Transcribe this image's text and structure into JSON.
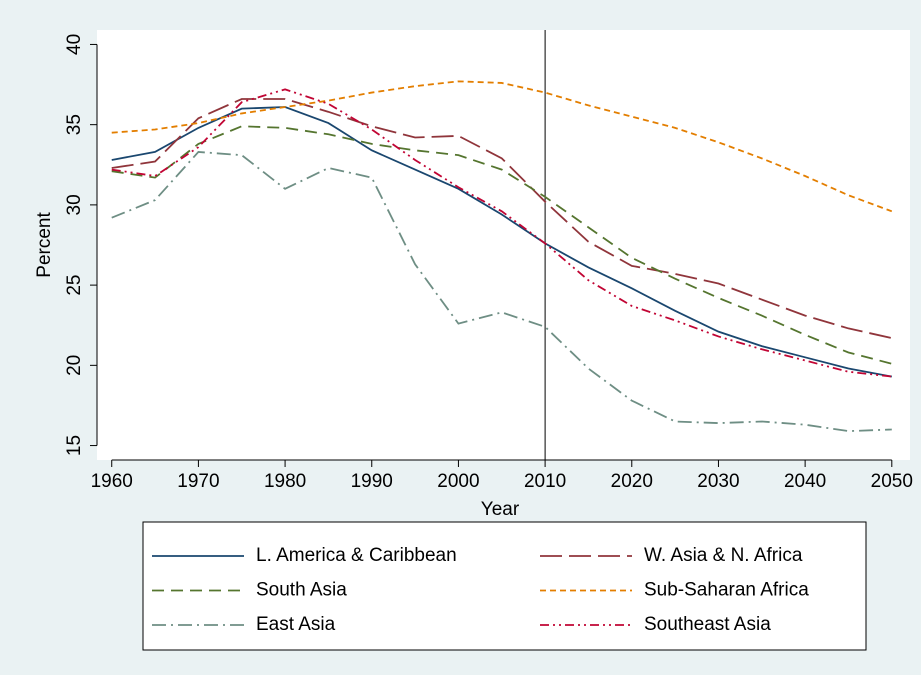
{
  "chart_data": {
    "type": "line",
    "x_label": "Year",
    "y_label": "Percent",
    "x": [
      1960,
      1965,
      1970,
      1975,
      1980,
      1985,
      1990,
      1995,
      2000,
      2005,
      2010,
      2015,
      2020,
      2025,
      2030,
      2035,
      2040,
      2045,
      2050
    ],
    "series": [
      {
        "name": "L. America & Caribbean",
        "color": "#1a476f",
        "dash": "solid",
        "values": [
          32.8,
          33.3,
          34.8,
          36.0,
          36.1,
          35.1,
          33.4,
          32.2,
          31.0,
          29.4,
          27.6,
          26.1,
          24.8,
          23.4,
          22.1,
          21.2,
          20.5,
          19.8,
          19.3
        ]
      },
      {
        "name": "W. Asia & N. Africa",
        "color": "#90353b",
        "dash": "longdash",
        "values": [
          32.3,
          32.7,
          35.4,
          36.6,
          36.6,
          35.8,
          34.9,
          34.2,
          34.3,
          32.9,
          30.2,
          27.7,
          26.2,
          25.7,
          25.1,
          24.1,
          23.1,
          22.3,
          21.7
        ]
      },
      {
        "name": "South Asia",
        "color": "#55752f",
        "dash": "dash",
        "values": [
          32.1,
          31.7,
          33.8,
          34.9,
          34.8,
          34.4,
          33.8,
          33.4,
          33.1,
          32.2,
          30.5,
          28.6,
          26.7,
          25.4,
          24.2,
          23.1,
          21.9,
          20.8,
          20.1
        ]
      },
      {
        "name": "Sub-Saharan Africa",
        "color": "#e37e00",
        "dash": "shortdash",
        "values": [
          34.5,
          34.7,
          35.1,
          35.7,
          36.1,
          36.5,
          37.0,
          37.4,
          37.7,
          37.6,
          37.0,
          36.2,
          35.5,
          34.8,
          33.9,
          32.9,
          31.8,
          30.6,
          29.6
        ]
      },
      {
        "name": "East Asia",
        "color": "#6e8e84",
        "dash": "dashdot",
        "values": [
          29.2,
          30.3,
          33.3,
          33.1,
          31.0,
          32.3,
          31.7,
          26.3,
          22.6,
          23.3,
          22.4,
          19.8,
          17.8,
          16.5,
          16.4,
          16.5,
          16.3,
          15.9,
          16.0
        ]
      },
      {
        "name": "Southeast Asia",
        "color": "#c10534",
        "dash": "dashdotdot",
        "values": [
          32.2,
          31.8,
          33.6,
          36.4,
          37.2,
          36.3,
          34.7,
          32.8,
          31.1,
          29.6,
          27.6,
          25.3,
          23.7,
          22.8,
          21.8,
          21.0,
          20.3,
          19.6,
          19.3
        ]
      }
    ],
    "xlim": [
      1958.3,
      2052.1
    ],
    "ylim": [
      14.1,
      40.9
    ],
    "xticks": [
      1960,
      1970,
      1980,
      1990,
      2000,
      2010,
      2020,
      2030,
      2040,
      2050
    ],
    "yticks": [
      15,
      20,
      25,
      30,
      35,
      40
    ],
    "reference_line_x": 2010,
    "legend": "bottom",
    "grid": false
  }
}
